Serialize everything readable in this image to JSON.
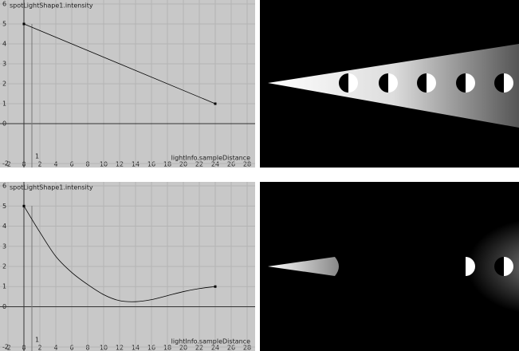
{
  "chart_data": [
    {
      "type": "line",
      "title": "spotLightShape1.intensity",
      "x_label": "lightInfo.sampleDistance",
      "time_marker": 1,
      "xlim": [
        -3,
        29
      ],
      "xticks": [
        -2,
        0,
        2,
        4,
        6,
        8,
        10,
        12,
        14,
        16,
        18,
        20,
        22,
        24,
        26,
        28
      ],
      "ylim": [
        -2.2,
        6.2
      ],
      "yticks": [
        -2,
        0,
        1,
        2,
        3,
        4,
        5,
        6
      ],
      "grid": true,
      "series": [
        {
          "color": "#000000",
          "x": [
            0,
            24
          ],
          "values": [
            5,
            1
          ]
        }
      ]
    },
    {
      "type": "line",
      "title": "spotLightShape1.intensity",
      "x_label": "lightInfo.sampleDistance",
      "time_marker": 1,
      "xlim": [
        -3,
        29
      ],
      "xticks": [
        -2,
        0,
        2,
        4,
        6,
        8,
        10,
        12,
        14,
        16,
        18,
        20,
        22,
        24,
        26,
        28
      ],
      "ylim": [
        -2.2,
        6.2
      ],
      "yticks": [
        -2,
        0,
        1,
        2,
        3,
        4,
        5,
        6
      ],
      "grid": true,
      "series": [
        {
          "color": "#000000",
          "x": [
            0,
            2,
            4,
            6,
            8,
            10,
            12,
            14,
            16,
            18,
            20,
            22,
            24
          ],
          "values": [
            5,
            3.7,
            2.5,
            1.7,
            1.1,
            0.6,
            0.3,
            0.25,
            0.35,
            0.55,
            0.75,
            0.9,
            1
          ]
        }
      ]
    }
  ]
}
